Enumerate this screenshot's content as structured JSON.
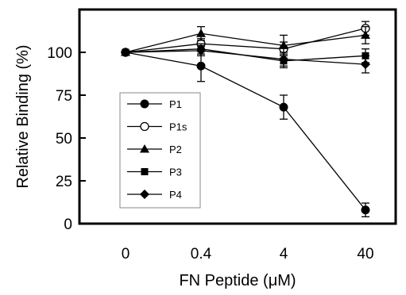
{
  "chart_data": {
    "type": "line",
    "xlabel": "FN Peptide (μM)",
    "ylabel": "Relative Binding (%)",
    "categories": [
      "0",
      "0.4",
      "4",
      "40"
    ],
    "ylim": [
      0,
      125
    ],
    "yticks": [
      0,
      25,
      50,
      75,
      100
    ],
    "grid": false,
    "legend_position": "lower-left",
    "series": [
      {
        "name": "P1",
        "marker": "circle-filled",
        "values": [
          100,
          92,
          68,
          8
        ],
        "errors": [
          0,
          9,
          7,
          4
        ]
      },
      {
        "name": "P1s",
        "marker": "circle-open",
        "values": [
          100,
          105,
          102,
          114
        ],
        "errors": [
          0,
          3,
          4,
          4
        ]
      },
      {
        "name": "P2",
        "marker": "triangle-filled",
        "values": [
          100,
          111,
          104,
          110
        ],
        "errors": [
          0,
          4,
          6,
          5
        ]
      },
      {
        "name": "P3",
        "marker": "square-filled",
        "values": [
          100,
          102,
          95,
          98
        ],
        "errors": [
          0,
          3,
          4,
          4
        ]
      },
      {
        "name": "P4",
        "marker": "diamond-filled",
        "values": [
          100,
          101,
          96,
          93
        ],
        "errors": [
          0,
          3,
          4,
          5
        ]
      }
    ]
  }
}
